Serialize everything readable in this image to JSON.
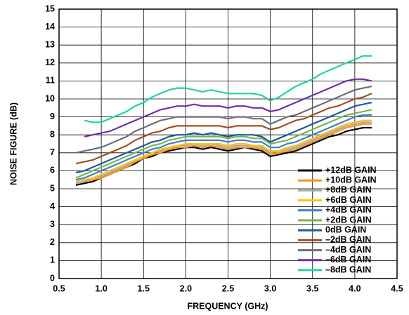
{
  "chart_data": {
    "type": "line",
    "x_label": "FREQUENCY (GHz)",
    "y_label": "NOISE FIGURE (dB)",
    "x": [
      0.7,
      0.8,
      0.9,
      1.0,
      1.1,
      1.2,
      1.3,
      1.4,
      1.5,
      1.6,
      1.7,
      1.8,
      1.9,
      2.0,
      2.1,
      2.2,
      2.3,
      2.4,
      2.5,
      2.6,
      2.7,
      2.8,
      2.9,
      3.0,
      3.1,
      3.2,
      3.3,
      3.4,
      3.5,
      3.6,
      3.7,
      3.8,
      3.9,
      4.0,
      4.1,
      4.2
    ],
    "xlim": [
      0.5,
      4.5
    ],
    "xticks": [
      0.5,
      {
        "value": 1,
        "label": "1.0"
      },
      1.5,
      {
        "value": 2,
        "label": "2.0"
      },
      2.5,
      {
        "value": 3,
        "label": "3.0"
      },
      3.5,
      {
        "value": 4,
        "label": "4.0"
      },
      4.5
    ],
    "ylim": [
      0,
      15
    ],
    "yticks": [
      0,
      1,
      2,
      3,
      4,
      5,
      6,
      7,
      8,
      9,
      10,
      11,
      12,
      13,
      14,
      15
    ],
    "grid": true,
    "legend": "lower right",
    "series": [
      {
        "name": "+12dB GAIN",
        "color": "#000000",
        "values": [
          5.2,
          5.3,
          5.4,
          5.6,
          5.8,
          6.0,
          6.2,
          6.4,
          6.7,
          6.8,
          7.0,
          7.1,
          7.2,
          7.3,
          7.3,
          7.2,
          7.3,
          7.2,
          7.1,
          7.2,
          7.3,
          7.2,
          7.1,
          6.8,
          6.9,
          7.0,
          7.1,
          7.3,
          7.5,
          7.7,
          7.9,
          8.0,
          8.2,
          8.3,
          8.4,
          8.4
        ]
      },
      {
        "name": "+10dB GAIN",
        "color": "#f7941d",
        "values": [
          5.3,
          5.4,
          5.5,
          5.6,
          5.8,
          6.0,
          6.2,
          6.5,
          6.7,
          6.9,
          7.0,
          7.2,
          7.3,
          7.3,
          7.4,
          7.3,
          7.4,
          7.3,
          7.2,
          7.3,
          7.3,
          7.3,
          7.2,
          6.9,
          7.0,
          7.1,
          7.2,
          7.4,
          7.6,
          7.8,
          8.0,
          8.2,
          8.4,
          8.5,
          8.6,
          8.6
        ]
      },
      {
        "name": "+8dB GAIN",
        "color": "#a7a9ac",
        "values": [
          5.3,
          5.4,
          5.6,
          5.7,
          5.9,
          6.1,
          6.3,
          6.6,
          6.8,
          7.0,
          7.1,
          7.3,
          7.4,
          7.4,
          7.5,
          7.4,
          7.5,
          7.4,
          7.3,
          7.4,
          7.4,
          7.4,
          7.3,
          7.0,
          7.1,
          7.2,
          7.3,
          7.5,
          7.7,
          7.9,
          8.1,
          8.3,
          8.5,
          8.6,
          8.7,
          8.7
        ]
      },
      {
        "name": "+6dB GAIN",
        "color": "#ffc20e",
        "values": [
          5.4,
          5.5,
          5.6,
          5.8,
          6.0,
          6.2,
          6.4,
          6.6,
          6.8,
          7.0,
          7.2,
          7.3,
          7.4,
          7.5,
          7.5,
          7.5,
          7.5,
          7.5,
          7.4,
          7.5,
          7.5,
          7.4,
          7.4,
          7.1,
          7.1,
          7.3,
          7.4,
          7.6,
          7.8,
          8.0,
          8.2,
          8.4,
          8.6,
          8.7,
          8.8,
          8.8
        ]
      },
      {
        "name": "+4dB GAIN",
        "color": "#3d7fd1",
        "values": [
          5.5,
          5.6,
          5.8,
          6.0,
          6.2,
          6.4,
          6.6,
          6.8,
          7.0,
          7.2,
          7.3,
          7.5,
          7.6,
          7.7,
          7.7,
          7.7,
          7.7,
          7.7,
          7.6,
          7.7,
          7.7,
          7.6,
          7.6,
          7.3,
          7.3,
          7.5,
          7.6,
          7.8,
          8.0,
          8.2,
          8.4,
          8.6,
          8.8,
          9.0,
          9.1,
          9.1
        ]
      },
      {
        "name": "+2dB GAIN",
        "color": "#7ab648",
        "values": [
          5.6,
          5.8,
          6.0,
          6.2,
          6.4,
          6.6,
          6.8,
          7.0,
          7.2,
          7.4,
          7.5,
          7.7,
          7.8,
          7.9,
          7.9,
          7.9,
          7.9,
          7.9,
          7.8,
          7.9,
          7.9,
          7.8,
          7.8,
          7.5,
          7.6,
          7.7,
          7.9,
          8.1,
          8.3,
          8.5,
          8.7,
          8.9,
          9.1,
          9.2,
          9.3,
          9.4
        ]
      },
      {
        "name": "0dB GAIN",
        "color": "#1c5a99",
        "values": [
          5.9,
          6.0,
          6.2,
          6.4,
          6.6,
          6.8,
          7.0,
          7.2,
          7.4,
          7.6,
          7.7,
          7.9,
          8.0,
          8.0,
          8.1,
          8.0,
          8.1,
          8.0,
          7.9,
          8.0,
          8.0,
          8.0,
          7.9,
          7.6,
          7.8,
          8.0,
          8.2,
          8.4,
          8.6,
          8.8,
          9.0,
          9.2,
          9.4,
          9.6,
          9.7,
          9.8
        ]
      },
      {
        "name": "–2dB GAIN",
        "color": "#a0501e",
        "values": [
          6.4,
          6.5,
          6.6,
          6.8,
          7.0,
          7.2,
          7.4,
          7.7,
          7.9,
          8.1,
          8.2,
          8.4,
          8.5,
          8.5,
          8.5,
          8.5,
          8.5,
          8.5,
          8.4,
          8.5,
          8.5,
          8.5,
          8.5,
          8.3,
          8.4,
          8.6,
          8.8,
          8.9,
          9.1,
          9.3,
          9.5,
          9.6,
          9.8,
          10.0,
          10.1,
          10.3
        ]
      },
      {
        "name": "–4dB GAIN",
        "color": "#6d6e71",
        "values": [
          7.0,
          7.1,
          7.2,
          7.3,
          7.5,
          7.7,
          7.9,
          8.2,
          8.4,
          8.6,
          8.8,
          8.9,
          9.0,
          9.0,
          9.0,
          9.0,
          9.0,
          9.0,
          8.9,
          9.0,
          9.0,
          8.9,
          8.9,
          8.6,
          8.8,
          9.0,
          9.1,
          9.3,
          9.5,
          9.7,
          9.9,
          10.1,
          10.3,
          10.5,
          10.6,
          10.7
        ]
      },
      {
        "name": "–6dB GAIN",
        "color": "#7030a0",
        "values": [
          null,
          7.9,
          8.0,
          8.1,
          8.2,
          8.4,
          8.6,
          8.8,
          9.0,
          9.2,
          9.4,
          9.5,
          9.6,
          9.6,
          9.7,
          9.6,
          9.6,
          9.6,
          9.5,
          9.6,
          9.6,
          9.5,
          9.5,
          9.3,
          9.4,
          9.6,
          9.8,
          10.0,
          10.2,
          10.4,
          10.6,
          10.8,
          11.0,
          11.1,
          11.1,
          11.0
        ]
      },
      {
        "name": "–8dB GAIN",
        "color": "#1fd3a3",
        "values": [
          null,
          8.8,
          8.7,
          8.7,
          8.9,
          9.1,
          9.3,
          9.6,
          9.8,
          10.1,
          10.3,
          10.5,
          10.6,
          10.6,
          10.5,
          10.4,
          10.5,
          10.4,
          10.3,
          10.3,
          10.3,
          10.3,
          10.2,
          9.9,
          10.1,
          10.4,
          10.7,
          10.9,
          11.1,
          11.4,
          11.6,
          11.8,
          12.0,
          12.2,
          12.4,
          12.4
        ]
      }
    ]
  }
}
